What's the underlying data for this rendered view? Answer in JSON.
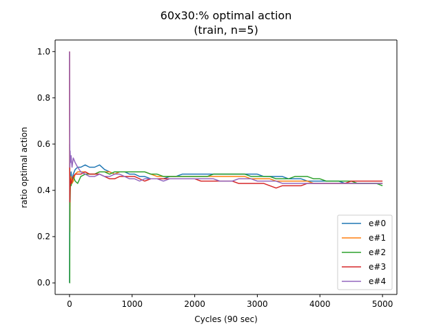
{
  "chart_data": {
    "type": "line",
    "title": "60x30:% optimal action",
    "subtitle": "(train, n=5)",
    "xlabel": "Cycles (90 sec)",
    "ylabel": "ratio optimal action",
    "xlim": [
      -230,
      5230
    ],
    "ylim": [
      -0.05,
      1.05
    ],
    "xticks": [
      0,
      1000,
      2000,
      3000,
      4000,
      5000
    ],
    "yticks": [
      0.0,
      0.2,
      0.4,
      0.6,
      0.8,
      1.0
    ],
    "xtick_labels": [
      "0",
      "1000",
      "2000",
      "3000",
      "4000",
      "5000"
    ],
    "ytick_labels": [
      "0.0",
      "0.2",
      "0.4",
      "0.6",
      "0.8",
      "1.0"
    ],
    "grid": false,
    "legend_position": "lower right",
    "series": [
      {
        "name": "e#0",
        "color": "#1f77b4",
        "x": [
          0,
          3,
          6,
          10,
          15,
          25,
          40,
          60,
          90,
          130,
          180,
          250,
          320,
          400,
          480,
          560,
          640,
          720,
          800,
          880,
          960,
          1040,
          1120,
          1200,
          1300,
          1400,
          1500,
          1600,
          1700,
          1800,
          1900,
          2000,
          2100,
          2200,
          2300,
          2400,
          2500,
          2600,
          2700,
          2800,
          2900,
          3000,
          3100,
          3200,
          3300,
          3400,
          3500,
          3600,
          3700,
          3800,
          3900,
          4000,
          4100,
          4200,
          4300,
          4400,
          4500,
          4600,
          4700,
          4800,
          4900,
          5000
        ],
        "y": [
          0.0,
          0.6,
          0.33,
          0.45,
          0.42,
          0.48,
          0.44,
          0.47,
          0.49,
          0.5,
          0.5,
          0.51,
          0.5,
          0.5,
          0.51,
          0.49,
          0.48,
          0.47,
          0.48,
          0.48,
          0.47,
          0.47,
          0.46,
          0.46,
          0.45,
          0.45,
          0.45,
          0.46,
          0.46,
          0.47,
          0.47,
          0.47,
          0.47,
          0.47,
          0.47,
          0.47,
          0.47,
          0.47,
          0.47,
          0.47,
          0.47,
          0.47,
          0.46,
          0.46,
          0.46,
          0.46,
          0.45,
          0.45,
          0.45,
          0.44,
          0.44,
          0.44,
          0.44,
          0.44,
          0.44,
          0.43,
          0.43,
          0.43,
          0.43,
          0.43,
          0.43,
          0.43
        ]
      },
      {
        "name": "e#1",
        "color": "#ff7f0e",
        "x": [
          0,
          3,
          6,
          10,
          15,
          25,
          40,
          60,
          90,
          130,
          180,
          250,
          320,
          400,
          480,
          560,
          640,
          720,
          800,
          880,
          960,
          1040,
          1120,
          1200,
          1300,
          1400,
          1500,
          1600,
          1700,
          1800,
          1900,
          2000,
          2100,
          2200,
          2300,
          2400,
          2500,
          2600,
          2700,
          2800,
          2900,
          3000,
          3100,
          3200,
          3300,
          3400,
          3500,
          3600,
          3700,
          3800,
          3900,
          4000,
          4100,
          4200,
          4300,
          4400,
          4500,
          4600,
          4700,
          4800,
          4900,
          5000
        ],
        "y": [
          1.0,
          0.5,
          0.22,
          0.4,
          0.44,
          0.46,
          0.43,
          0.44,
          0.47,
          0.48,
          0.48,
          0.48,
          0.47,
          0.47,
          0.48,
          0.48,
          0.48,
          0.47,
          0.48,
          0.48,
          0.48,
          0.48,
          0.48,
          0.48,
          0.47,
          0.46,
          0.46,
          0.46,
          0.46,
          0.46,
          0.46,
          0.46,
          0.46,
          0.46,
          0.46,
          0.46,
          0.46,
          0.46,
          0.46,
          0.46,
          0.45,
          0.45,
          0.45,
          0.45,
          0.44,
          0.44,
          0.44,
          0.44,
          0.44,
          0.44,
          0.43,
          0.43,
          0.43,
          0.43,
          0.43,
          0.43,
          0.43,
          0.43,
          0.43,
          0.43,
          0.43,
          0.43
        ]
      },
      {
        "name": "e#2",
        "color": "#2ca02c",
        "x": [
          0,
          3,
          6,
          10,
          15,
          25,
          40,
          60,
          90,
          130,
          180,
          250,
          320,
          400,
          480,
          560,
          640,
          720,
          800,
          880,
          960,
          1040,
          1120,
          1200,
          1300,
          1400,
          1500,
          1600,
          1700,
          1800,
          1900,
          2000,
          2100,
          2200,
          2300,
          2400,
          2500,
          2600,
          2700,
          2800,
          2900,
          3000,
          3100,
          3200,
          3300,
          3400,
          3500,
          3600,
          3700,
          3800,
          3900,
          4000,
          4100,
          4200,
          4300,
          4400,
          4500,
          4600,
          4700,
          4800,
          4900,
          5000
        ],
        "y": [
          0.0,
          0.0,
          0.35,
          0.36,
          0.45,
          0.42,
          0.44,
          0.46,
          0.44,
          0.43,
          0.46,
          0.47,
          0.47,
          0.47,
          0.48,
          0.48,
          0.47,
          0.48,
          0.48,
          0.48,
          0.48,
          0.48,
          0.48,
          0.48,
          0.47,
          0.47,
          0.46,
          0.46,
          0.46,
          0.46,
          0.46,
          0.46,
          0.46,
          0.46,
          0.47,
          0.47,
          0.47,
          0.47,
          0.47,
          0.47,
          0.46,
          0.46,
          0.46,
          0.46,
          0.45,
          0.45,
          0.45,
          0.46,
          0.46,
          0.46,
          0.45,
          0.45,
          0.44,
          0.44,
          0.44,
          0.44,
          0.44,
          0.43,
          0.43,
          0.43,
          0.43,
          0.42
        ]
      },
      {
        "name": "e#3",
        "color": "#d62728",
        "x": [
          0,
          3,
          6,
          10,
          15,
          25,
          40,
          60,
          90,
          130,
          180,
          250,
          320,
          400,
          480,
          560,
          640,
          720,
          800,
          880,
          960,
          1040,
          1120,
          1200,
          1300,
          1400,
          1500,
          1600,
          1700,
          1800,
          1900,
          2000,
          2100,
          2200,
          2300,
          2400,
          2500,
          2600,
          2700,
          2800,
          2900,
          3000,
          3100,
          3200,
          3300,
          3400,
          3500,
          3600,
          3700,
          3800,
          3900,
          4000,
          4100,
          4200,
          4300,
          4400,
          4500,
          4600,
          4700,
          4800,
          4900,
          5000
        ],
        "y": [
          1.0,
          0.5,
          0.35,
          0.42,
          0.45,
          0.43,
          0.44,
          0.46,
          0.47,
          0.47,
          0.47,
          0.48,
          0.47,
          0.47,
          0.47,
          0.46,
          0.45,
          0.45,
          0.46,
          0.46,
          0.46,
          0.46,
          0.45,
          0.44,
          0.45,
          0.45,
          0.45,
          0.45,
          0.45,
          0.45,
          0.45,
          0.45,
          0.44,
          0.44,
          0.44,
          0.44,
          0.44,
          0.44,
          0.43,
          0.43,
          0.43,
          0.43,
          0.43,
          0.42,
          0.41,
          0.42,
          0.42,
          0.42,
          0.42,
          0.43,
          0.43,
          0.43,
          0.43,
          0.43,
          0.43,
          0.43,
          0.44,
          0.44,
          0.44,
          0.44,
          0.44,
          0.44
        ]
      },
      {
        "name": "e#4",
        "color": "#9467bd",
        "x": [
          0,
          3,
          6,
          10,
          15,
          25,
          40,
          60,
          90,
          130,
          180,
          250,
          320,
          400,
          480,
          560,
          640,
          720,
          800,
          880,
          960,
          1040,
          1120,
          1200,
          1300,
          1400,
          1500,
          1600,
          1700,
          1800,
          1900,
          2000,
          2100,
          2200,
          2300,
          2400,
          2500,
          2600,
          2700,
          2800,
          2900,
          3000,
          3100,
          3200,
          3300,
          3400,
          3500,
          3600,
          3700,
          3800,
          3900,
          4000,
          4100,
          4200,
          4300,
          4400,
          4500,
          4600,
          4700,
          4800,
          4900,
          5000
        ],
        "y": [
          1.0,
          0.67,
          0.5,
          0.57,
          0.52,
          0.55,
          0.5,
          0.54,
          0.52,
          0.5,
          0.48,
          0.47,
          0.46,
          0.46,
          0.47,
          0.46,
          0.46,
          0.47,
          0.47,
          0.46,
          0.45,
          0.45,
          0.44,
          0.45,
          0.45,
          0.45,
          0.44,
          0.45,
          0.45,
          0.45,
          0.45,
          0.45,
          0.45,
          0.45,
          0.45,
          0.44,
          0.44,
          0.44,
          0.45,
          0.45,
          0.45,
          0.44,
          0.44,
          0.44,
          0.44,
          0.43,
          0.43,
          0.43,
          0.43,
          0.43,
          0.43,
          0.43,
          0.43,
          0.43,
          0.43,
          0.43,
          0.43,
          0.43,
          0.43,
          0.43,
          0.43,
          0.43
        ]
      }
    ]
  }
}
